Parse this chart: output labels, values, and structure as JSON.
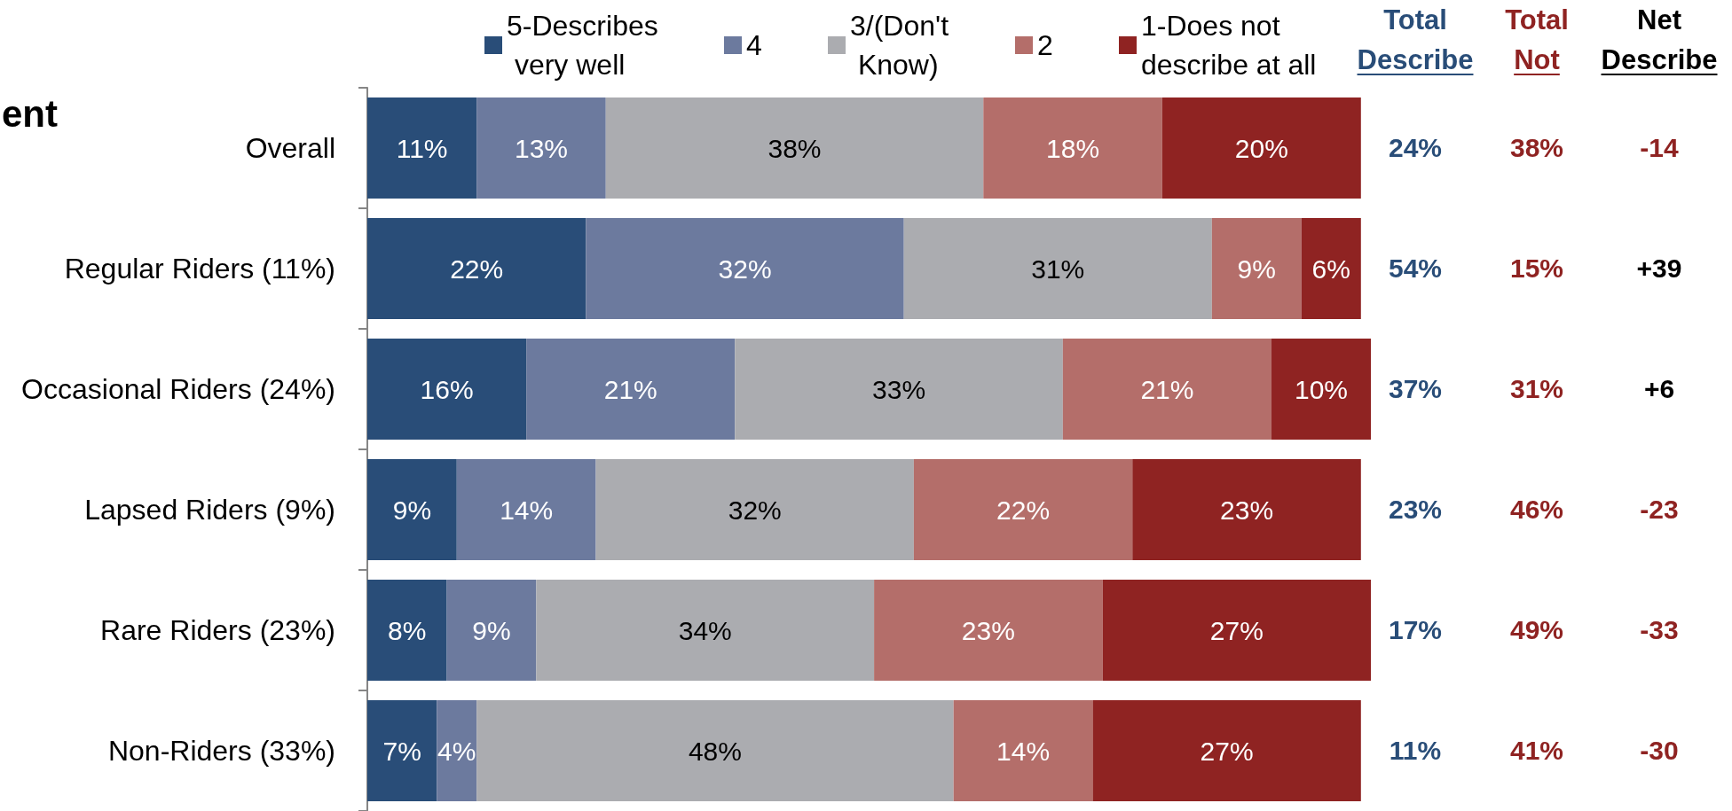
{
  "chart_data": {
    "type": "bar",
    "orientation": "horizontal",
    "stacked": true,
    "ylabel": "ent",
    "categories": [
      "Overall",
      "Regular Riders (11%)",
      "Occasional Riders (24%)",
      "Lapsed Riders (9%)",
      "Rare Riders (23%)",
      "Non-Riders (33%)"
    ],
    "series": [
      {
        "name": "5-Describes very well",
        "color": "#294d78",
        "values": [
          11,
          22,
          16,
          9,
          8,
          7
        ],
        "value_labels": [
          "11%",
          "22%",
          "16%",
          "9%",
          "8%",
          "7%"
        ]
      },
      {
        "name": "4",
        "color": "#6c7a9e",
        "values": [
          13,
          32,
          21,
          14,
          9,
          4
        ],
        "value_labels": [
          "13%",
          "32%",
          "21%",
          "14%",
          "9%",
          "4%"
        ]
      },
      {
        "name": "3/(Don't Know)",
        "color": "#abacb0",
        "values": [
          38,
          31,
          33,
          32,
          34,
          48
        ],
        "value_labels": [
          "38%",
          "31%",
          "33%",
          "32%",
          "34%",
          "48%"
        ]
      },
      {
        "name": "2",
        "color": "#b46e6a",
        "values": [
          18,
          9,
          21,
          22,
          23,
          14
        ],
        "value_labels": [
          "18%",
          "9%",
          "21%",
          "22%",
          "23%",
          "14%"
        ]
      },
      {
        "name": "1-Does not describe at all",
        "color": "#8f2322",
        "values": [
          20,
          6,
          10,
          23,
          27,
          27
        ],
        "value_labels": [
          "20%",
          "6%",
          "10%",
          "23%",
          "27%",
          "27%"
        ]
      }
    ],
    "xlim": [
      0,
      101
    ],
    "tick_labels": "y",
    "grid": false,
    "legend": "top",
    "annotations": [
      "Total Describe",
      "Total Not",
      "Net Describe",
      "24%",
      "38%",
      "-14",
      "54%",
      "15%",
      "+39",
      "37%",
      "31%",
      "+6",
      "23%",
      "46%",
      "-23",
      "17%",
      "49%",
      "-33",
      "11%",
      "41%",
      "-30"
    ]
  }
}
